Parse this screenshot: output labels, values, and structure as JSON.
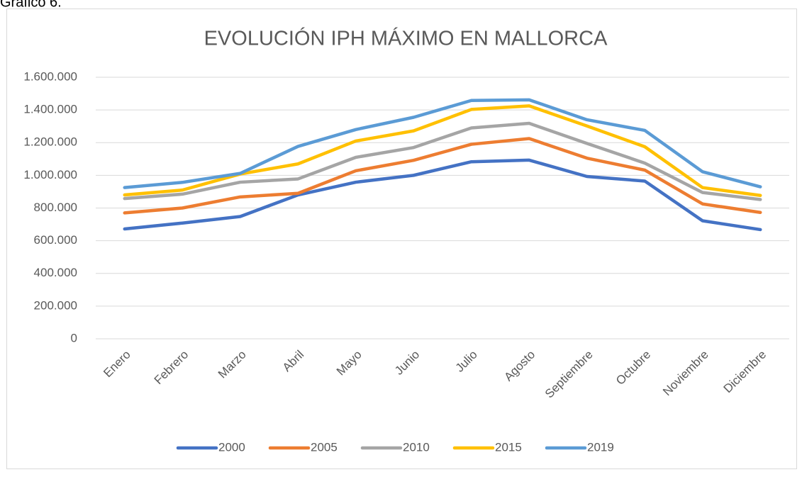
{
  "caption": "Gráfico 6.",
  "chart_data": {
    "type": "line",
    "title": "EVOLUCIÓN IPH MÁXIMO EN MALLORCA",
    "categories": [
      "Enero",
      "Febrero",
      "Marzo",
      "Abril",
      "Mayo",
      "Junio",
      "Julio",
      "Agosto",
      "Septiembre",
      "Octubre",
      "Noviembre",
      "Diciembre"
    ],
    "series": [
      {
        "name": "2000",
        "color": "#4472c4",
        "values": [
          672000,
          708000,
          748000,
          880000,
          958000,
          1000000,
          1083000,
          1093000,
          993000,
          965000,
          722000,
          668000
        ]
      },
      {
        "name": "2005",
        "color": "#ed7d31",
        "values": [
          770000,
          800000,
          868000,
          890000,
          1028000,
          1092000,
          1190000,
          1225000,
          1105000,
          1032000,
          825000,
          773000
        ]
      },
      {
        "name": "2010",
        "color": "#a5a5a5",
        "values": [
          858000,
          885000,
          958000,
          978000,
          1110000,
          1170000,
          1290000,
          1318000,
          1195000,
          1075000,
          895000,
          852000
        ]
      },
      {
        "name": "2015",
        "color": "#ffc000",
        "values": [
          880000,
          910000,
          1008000,
          1070000,
          1210000,
          1272000,
          1403000,
          1425000,
          1302000,
          1175000,
          925000,
          877000
        ]
      },
      {
        "name": "2019",
        "color": "#5b9bd5",
        "values": [
          925000,
          957000,
          1012000,
          1177000,
          1280000,
          1355000,
          1458000,
          1462000,
          1340000,
          1275000,
          1022000,
          930000
        ]
      }
    ],
    "ylim": [
      0,
      1600000
    ],
    "yticks": [
      0,
      {
        "value": 200000,
        "label": "200.000"
      },
      {
        "value": 400000,
        "label": "400.000"
      },
      {
        "value": 600000,
        "label": "600.000"
      },
      {
        "value": 800000,
        "label": "800.000"
      },
      {
        "value": 1000000,
        "label": "1.000.000"
      },
      {
        "value": 1200000,
        "label": "1.200.000"
      },
      {
        "value": 1400000,
        "label": "1.400.000"
      },
      {
        "value": 1600000,
        "label": "1.600.000"
      }
    ],
    "grid": true,
    "legend": "bottom"
  }
}
